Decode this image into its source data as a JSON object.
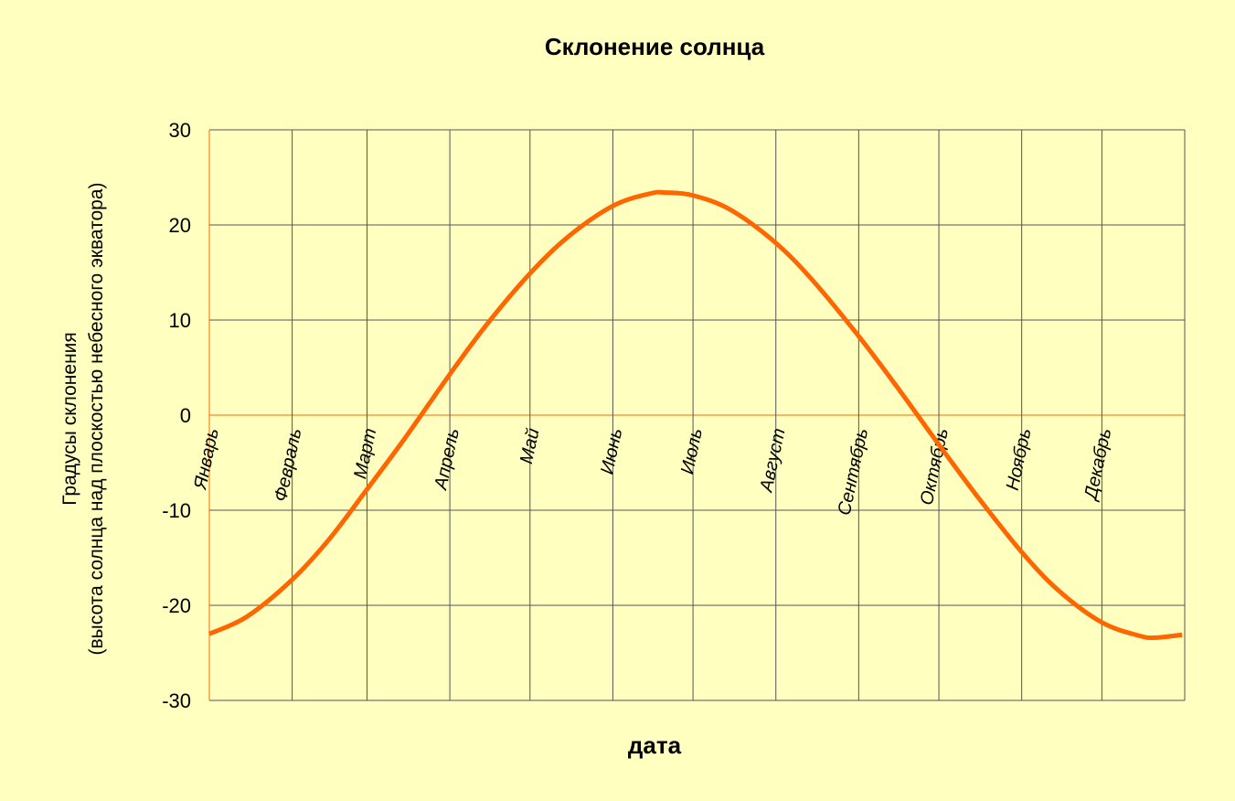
{
  "chart_data": {
    "type": "line",
    "title": "Склонение солнца",
    "xlabel": "дата",
    "ylabel": [
      "Градусы склонения",
      "(высота солнца над плоскостью небесного экватора)"
    ],
    "ylim": [
      -30,
      30
    ],
    "yticks": [
      "30",
      "20",
      "10",
      "0",
      "-10",
      "-20",
      "-30"
    ],
    "xlim": [
      "2023-01-01",
      "2023-12-31"
    ],
    "month_starts": [
      "2023-01-01",
      "2023-02-01",
      "2023-03-01",
      "2023-04-01",
      "2023-05-01",
      "2023-06-01",
      "2023-07-01",
      "2023-08-01",
      "2023-09-01",
      "2023-10-01",
      "2023-11-01",
      "2023-12-01"
    ],
    "month_labels": [
      "Январь",
      "Февраль",
      "Март",
      "Апрель",
      "Май",
      "Июнь",
      "Июль",
      "Август",
      "Сентябрь",
      "Октябрь",
      "Ноябрь",
      "Декабрь"
    ],
    "grid": true,
    "series": [
      {
        "name": "",
        "color": "#ff6600",
        "x": [
          "2023-01-01",
          "2023-01-15",
          "2023-02-01",
          "2023-02-15",
          "2023-03-01",
          "2023-03-15",
          "2023-04-01",
          "2023-04-15",
          "2023-05-01",
          "2023-05-15",
          "2023-06-01",
          "2023-06-15",
          "2023-06-21",
          "2023-07-01",
          "2023-07-15",
          "2023-08-01",
          "2023-08-15",
          "2023-09-01",
          "2023-09-15",
          "2023-10-01",
          "2023-10-15",
          "2023-11-01",
          "2023-11-15",
          "2023-12-01",
          "2023-12-15",
          "2023-12-21",
          "2023-12-31"
        ],
        "y": [
          -23.0,
          -21.2,
          -17.3,
          -13.0,
          -7.8,
          -2.5,
          4.3,
          9.6,
          14.9,
          18.7,
          22.0,
          23.3,
          23.4,
          23.1,
          21.6,
          18.1,
          14.1,
          8.3,
          3.1,
          -3.1,
          -8.4,
          -14.4,
          -18.5,
          -21.8,
          -23.2,
          -23.4,
          -23.1
        ]
      }
    ],
    "colors": {
      "background": "#ffffc0",
      "grid": "#555555",
      "axis": "#ff6600",
      "zero_line": "#ff6600",
      "text": "#000000"
    }
  }
}
